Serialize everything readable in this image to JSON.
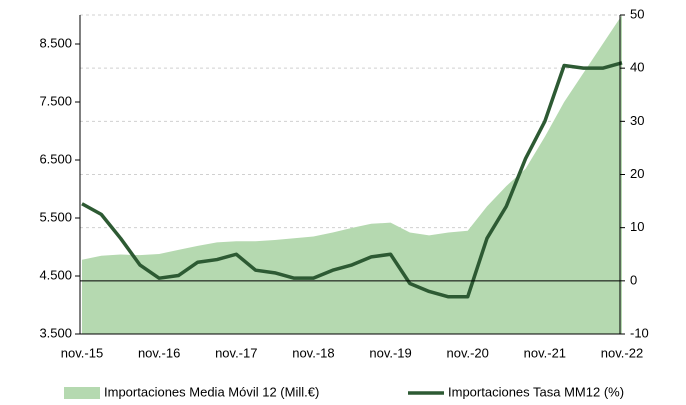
{
  "chart_data": {
    "type": "area_line",
    "categories": [
      "nov.-15",
      null,
      null,
      null,
      "nov.-16",
      null,
      null,
      null,
      "nov.-17",
      null,
      null,
      null,
      "nov.-18",
      null,
      null,
      null,
      "nov.-19",
      null,
      null,
      null,
      "nov.-20",
      null,
      null,
      null,
      "nov.-21",
      null,
      null,
      null,
      "nov.-22"
    ],
    "series": [
      {
        "name": "Importaciones Media Móvil 12 (Mill.€)",
        "color": "#b5d9b0",
        "axis": "y",
        "values": [
          4780,
          4850,
          4870,
          4860,
          4880,
          4950,
          5020,
          5080,
          5100,
          5100,
          5120,
          5150,
          5180,
          5250,
          5330,
          5400,
          5420,
          5250,
          5200,
          5250,
          5280,
          5700,
          6050,
          6350,
          6900,
          7500,
          8000,
          8500,
          9000
        ]
      },
      {
        "name": "Importaciones Tasa MM12 (%)",
        "color": "#2d5a33",
        "axis": "y2",
        "values": [
          14.5,
          12.5,
          8,
          3,
          0.5,
          1,
          3.5,
          4,
          5,
          2,
          1.5,
          0.5,
          0.5,
          2,
          3,
          4.5,
          5,
          -0.5,
          -2,
          -3,
          -3,
          8,
          14,
          23,
          30,
          40.5,
          40,
          40,
          41
        ]
      }
    ],
    "ylim": [
      3500,
      9000
    ],
    "yticks": [
      {
        "value": 3500,
        "label": "3.500"
      },
      {
        "value": 4500,
        "label": "4.500"
      },
      {
        "value": 5500,
        "label": "5.500"
      },
      {
        "value": 6500,
        "label": "6.500"
      },
      {
        "value": 7500,
        "label": "7.500"
      },
      {
        "value": 8500,
        "label": "8.500"
      }
    ],
    "y2lim": [
      -10,
      50
    ],
    "y2ticks": [
      -10,
      0,
      10,
      20,
      30,
      40,
      50
    ],
    "grid": true
  }
}
